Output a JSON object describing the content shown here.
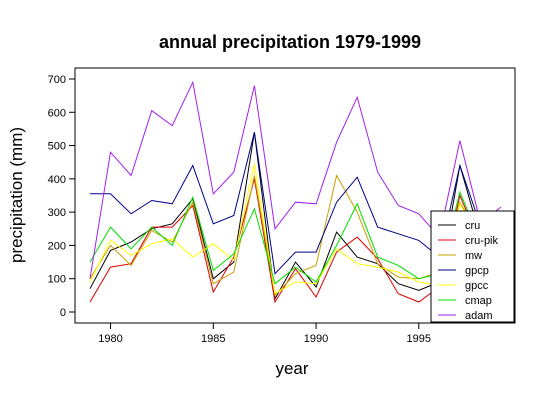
{
  "chart_data": {
    "type": "line",
    "title": "annual precipitation 1979-1999",
    "xlabel": "year",
    "ylabel": "precipitation (mm)",
    "x": [
      1979,
      1980,
      1981,
      1982,
      1983,
      1984,
      1985,
      1986,
      1987,
      1988,
      1989,
      1990,
      1991,
      1992,
      1993,
      1994,
      1995,
      1996,
      1997,
      1998,
      1999
    ],
    "xlim": [
      1979,
      1999
    ],
    "ylim": [
      0,
      700
    ],
    "xticks": [
      "1980",
      "1985",
      "1990",
      "1995"
    ],
    "yticks": [
      "0",
      "100",
      "200",
      "300",
      "400",
      "500",
      "600",
      "700"
    ],
    "grid": false,
    "legend_position": "bottom-right",
    "series": [
      {
        "name": "cru",
        "color": "#000000",
        "values": [
          70,
          185,
          210,
          250,
          265,
          340,
          100,
          150,
          540,
          40,
          150,
          75,
          240,
          165,
          145,
          85,
          65,
          90,
          440,
          225,
          null
        ]
      },
      {
        "name": "cru-pik",
        "color": "#e00000",
        "values": [
          30,
          135,
          145,
          255,
          255,
          320,
          60,
          165,
          400,
          30,
          130,
          45,
          180,
          225,
          160,
          55,
          30,
          75,
          350,
          205,
          null
        ]
      },
      {
        "name": "mw",
        "color": "#c8a000",
        "values": [
          100,
          200,
          140,
          245,
          210,
          330,
          85,
          120,
          410,
          50,
          115,
          140,
          410,
          300,
          145,
          105,
          100,
          120,
          330,
          225,
          null
        ]
      },
      {
        "name": "gpcp",
        "color": "#00008b",
        "values": [
          355,
          355,
          295,
          335,
          325,
          440,
          265,
          290,
          540,
          115,
          180,
          180,
          330,
          405,
          255,
          235,
          215,
          165,
          440,
          260,
          null
        ]
      },
      {
        "name": "gpcc",
        "color": "#ffff00",
        "values": [
          90,
          215,
          170,
          205,
          220,
          165,
          205,
          155,
          445,
          55,
          90,
          85,
          190,
          145,
          135,
          120,
          90,
          80,
          325,
          200,
          null
        ]
      },
      {
        "name": "cmap",
        "color": "#00e000",
        "values": [
          150,
          255,
          190,
          255,
          200,
          345,
          125,
          175,
          310,
          85,
          135,
          90,
          200,
          325,
          165,
          140,
          100,
          115,
          360,
          215,
          null
        ]
      },
      {
        "name": "adam",
        "color": "#a020f0",
        "values": [
          100,
          480,
          410,
          605,
          560,
          690,
          355,
          420,
          680,
          250,
          330,
          325,
          510,
          645,
          420,
          320,
          295,
          225,
          515,
          270,
          315
        ]
      }
    ]
  }
}
